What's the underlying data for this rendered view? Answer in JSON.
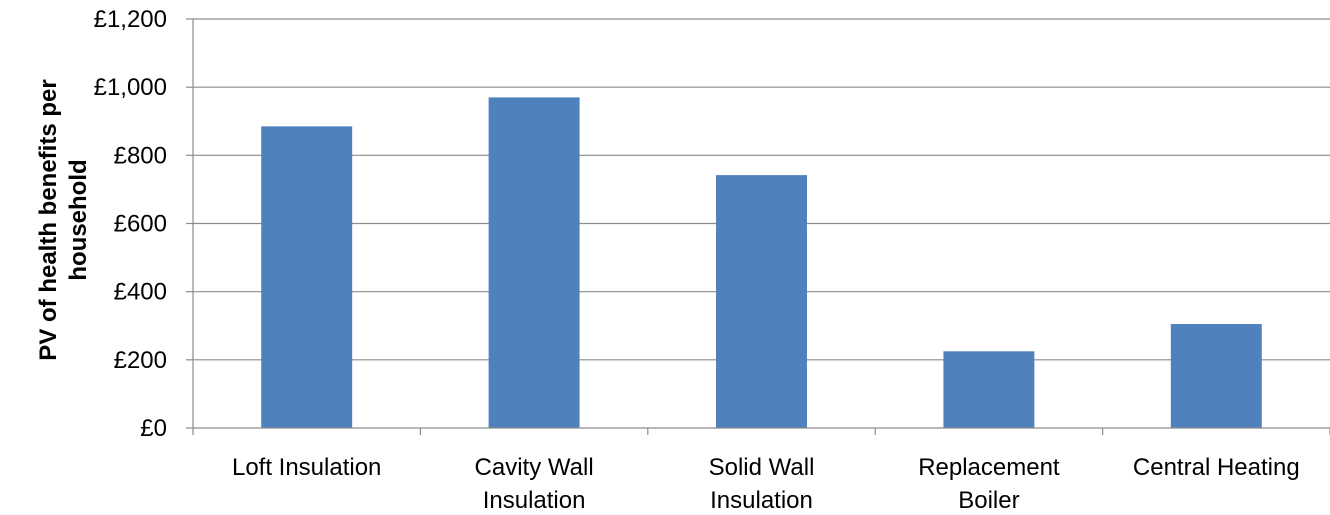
{
  "chart_data": {
    "type": "bar",
    "title": "",
    "xlabel": "",
    "ylabel": "PV of health benefits per household",
    "ylabel_lines": [
      "PV of health benefits per",
      "household"
    ],
    "categories": [
      "Loft Insulation",
      "Cavity Wall Insulation",
      "Solid Wall Insulation",
      "Replacement Boiler",
      "Central Heating"
    ],
    "category_lines": [
      [
        "Loft Insulation"
      ],
      [
        "Cavity Wall",
        "Insulation"
      ],
      [
        "Solid Wall",
        "Insulation"
      ],
      [
        "Replacement",
        "Boiler"
      ],
      [
        "Central Heating"
      ]
    ],
    "values": [
      885,
      970,
      742,
      225,
      305
    ],
    "ylim": [
      0,
      1200
    ],
    "yticks": [
      0,
      200,
      400,
      600,
      800,
      1000,
      1200
    ],
    "ytick_labels": [
      "£0",
      "£200",
      "£400",
      "£600",
      "£800",
      "£1,000",
      "£1,200"
    ],
    "grid": true,
    "legend": "none",
    "colors": {
      "bar": "#4f81bd",
      "grid": "#8c8c8c",
      "axis": "#8c8c8c"
    }
  }
}
